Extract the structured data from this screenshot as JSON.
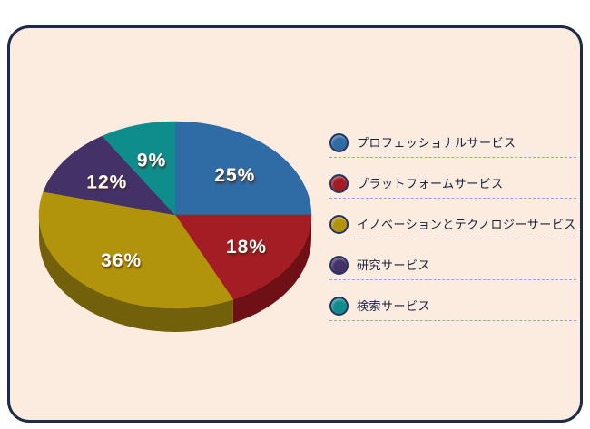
{
  "chart_data": {
    "type": "pie",
    "style": "3d",
    "labels": [
      "プロフェッショナルサービス",
      "プラットフォームサービス",
      "イノベーションとテクノロジーサービス",
      "研究サービス",
      "検索サービス"
    ],
    "values": [
      25,
      18,
      36,
      12,
      9
    ],
    "value_labels": [
      "25%",
      "18%",
      "36%",
      "12%",
      "9%"
    ],
    "colors": [
      "#2f6ba4",
      "#a51d24",
      "#b2940c",
      "#433168",
      "#0f8d8d"
    ],
    "side_colors": [
      "#1d4a77",
      "#6e1016",
      "#73600a",
      "#2a1f46",
      "#085f5f"
    ],
    "direction": "clockwise",
    "start_angle_deg": 0,
    "legend_position": "right",
    "title": ""
  },
  "card": {
    "background": "#fcebdf",
    "border_color": "#1c2b4a"
  },
  "legend": {
    "dash_color": "#8fa6d4"
  }
}
